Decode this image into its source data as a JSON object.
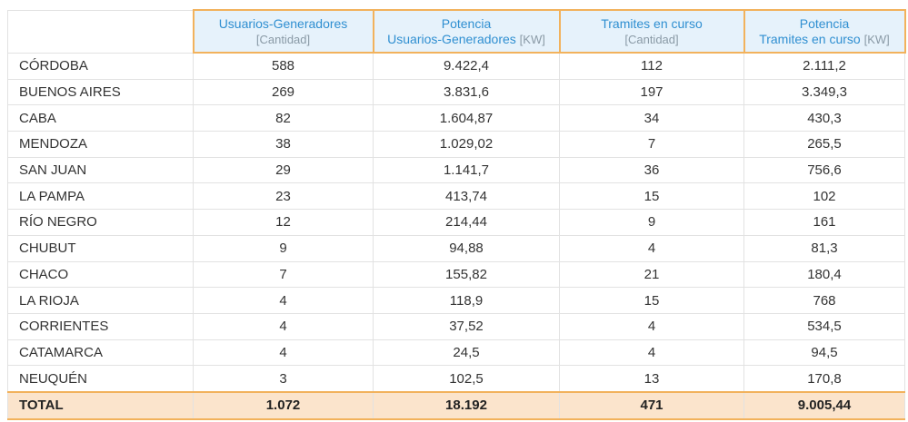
{
  "table": {
    "header": [
      {
        "line1": "Usuarios-Generadores",
        "unit": "[Cantidad]"
      },
      {
        "line1": "Potencia",
        "line2": "Usuarios-Generadores",
        "unit": "[KW]"
      },
      {
        "line1": "Tramites en curso",
        "unit": "[Cantidad]"
      },
      {
        "line1": "Potencia",
        "line2": "Tramites en curso",
        "unit": "[KW]"
      }
    ],
    "rows": [
      [
        "CÓRDOBA",
        "588",
        "9.422,4",
        "112",
        "2.111,2"
      ],
      [
        "BUENOS AIRES",
        "269",
        "3.831,6",
        "197",
        "3.349,3"
      ],
      [
        "CABA",
        "82",
        "1.604,87",
        "34",
        "430,3"
      ],
      [
        "MENDOZA",
        "38",
        "1.029,02",
        "7",
        "265,5"
      ],
      [
        "SAN JUAN",
        "29",
        "1.141,7",
        "36",
        "756,6"
      ],
      [
        "LA PAMPA",
        "23",
        "413,74",
        "15",
        "102"
      ],
      [
        "RÍO NEGRO",
        "12",
        "214,44",
        "9",
        "161"
      ],
      [
        "CHUBUT",
        "9",
        "94,88",
        "4",
        "81,3"
      ],
      [
        "CHACO",
        "7",
        "155,82",
        "21",
        "180,4"
      ],
      [
        "LA RIOJA",
        "4",
        "118,9",
        "15",
        "768"
      ],
      [
        "CORRIENTES",
        "4",
        "37,52",
        "4",
        "534,5"
      ],
      [
        "CATAMARCA",
        "4",
        "24,5",
        "4",
        "94,5"
      ],
      [
        "NEUQUÉN",
        "3",
        "102,5",
        "13",
        "170,8"
      ]
    ],
    "total": [
      "TOTAL",
      "1.072",
      "18.192",
      "471",
      "9.005,44"
    ]
  }
}
